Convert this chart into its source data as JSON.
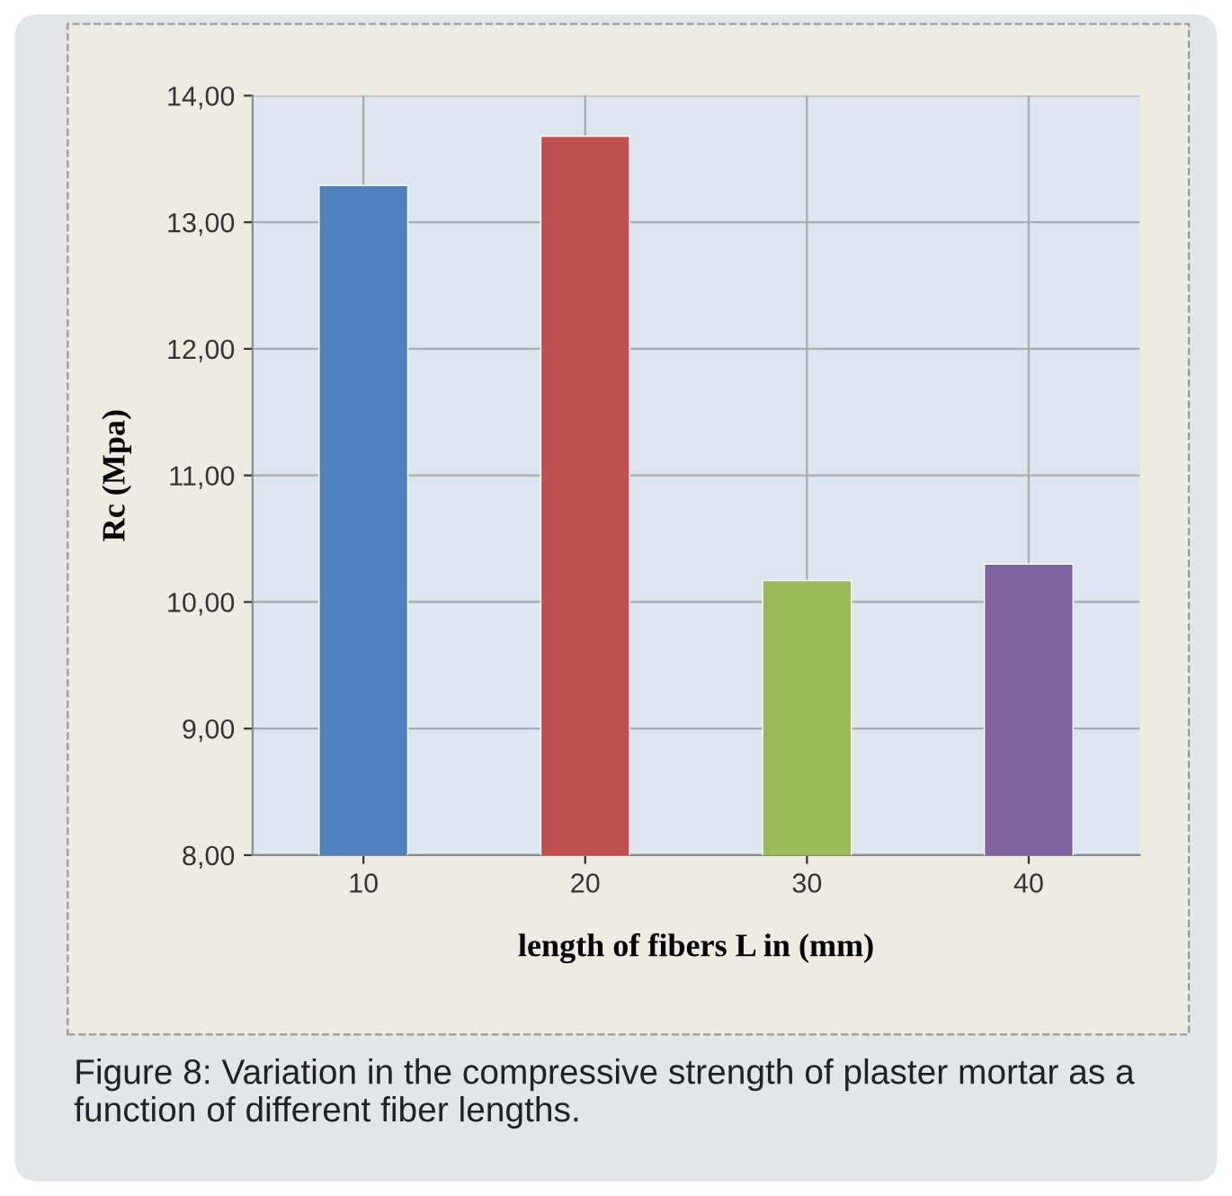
{
  "chart_data": {
    "type": "bar",
    "categories": [
      "10",
      "20",
      "30",
      "40"
    ],
    "values": [
      13.29,
      13.68,
      10.17,
      10.3
    ],
    "colors": [
      "#4f81bd",
      "#c0504d",
      "#9bbb59",
      "#8064a2"
    ],
    "xlabel": "length of fibers L in (mm)",
    "ylabel": "Rc (Mpa)",
    "ylim": [
      8,
      14
    ],
    "yticks": [
      {
        "value": 8,
        "label": "8,00"
      },
      {
        "value": 9,
        "label": "9,00"
      },
      {
        "value": 10,
        "label": "10,00"
      },
      {
        "value": 11,
        "label": "11,00"
      },
      {
        "value": 12,
        "label": "12,00"
      },
      {
        "value": 13,
        "label": "13,00"
      },
      {
        "value": 14,
        "label": "14,00"
      }
    ],
    "grid": true,
    "annotations": [
      "Figure 8: Variation in the compressive strength of plaster mortar as a function of different fiber lengths."
    ]
  }
}
